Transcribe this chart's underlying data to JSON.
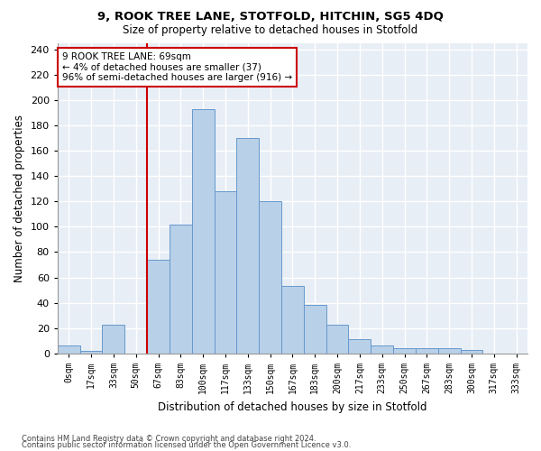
{
  "title1": "9, ROOK TREE LANE, STOTFOLD, HITCHIN, SG5 4DQ",
  "title2": "Size of property relative to detached houses in Stotfold",
  "xlabel": "Distribution of detached houses by size in Stotfold",
  "ylabel": "Number of detached properties",
  "categories": [
    "0sqm",
    "17sqm",
    "33sqm",
    "50sqm",
    "67sqm",
    "83sqm",
    "100sqm",
    "117sqm",
    "133sqm",
    "150sqm",
    "167sqm",
    "183sqm",
    "200sqm",
    "217sqm",
    "233sqm",
    "250sqm",
    "267sqm",
    "283sqm",
    "300sqm",
    "317sqm",
    "333sqm"
  ],
  "values": [
    6,
    2,
    23,
    0,
    74,
    102,
    193,
    128,
    170,
    120,
    53,
    38,
    23,
    11,
    6,
    4,
    4,
    4,
    3,
    0,
    0
  ],
  "bar_color": "#b8d0e8",
  "bar_edge_color": "#6699cc",
  "bg_color": "#e8eef6",
  "grid_color": "#ffffff",
  "vline_color": "#cc0000",
  "vline_x_index": 4,
  "annotation_text": "9 ROOK TREE LANE: 69sqm\n← 4% of detached houses are smaller (37)\n96% of semi-detached houses are larger (916) →",
  "annotation_box_color": "#ffffff",
  "annotation_box_edge": "#cc0000",
  "ylim": [
    0,
    245
  ],
  "yticks": [
    0,
    20,
    40,
    60,
    80,
    100,
    120,
    140,
    160,
    180,
    200,
    220,
    240
  ],
  "footer1": "Contains HM Land Registry data © Crown copyright and database right 2024.",
  "footer2": "Contains public sector information licensed under the Open Government Licence v3.0."
}
